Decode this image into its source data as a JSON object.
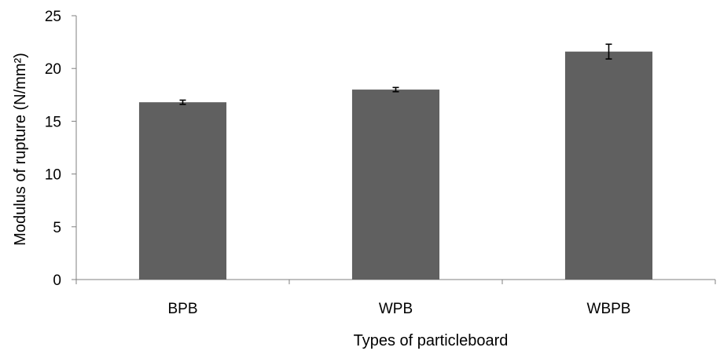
{
  "chart_data": {
    "type": "bar",
    "categories": [
      "BPB",
      "WPB",
      "WBPB"
    ],
    "values": [
      16.8,
      18.0,
      21.6
    ],
    "errors": [
      0.2,
      0.2,
      0.7
    ],
    "title": "",
    "xlabel": "Types of particleboard",
    "ylabel": "Modulus of rupture (N/mm²)",
    "ylim": [
      0,
      25
    ],
    "yticks": [
      "0",
      "5",
      "10",
      "15",
      "20",
      "25"
    ],
    "grid": false,
    "bar_color": "#606060"
  }
}
